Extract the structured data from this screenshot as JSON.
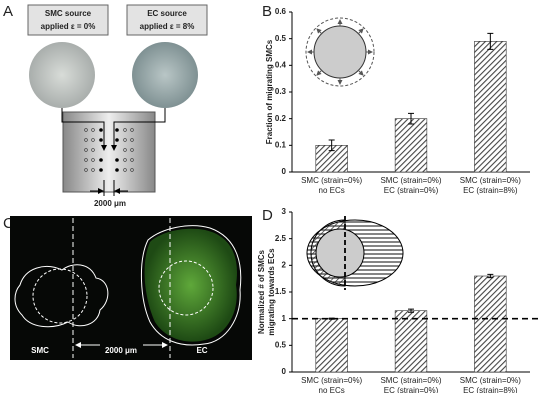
{
  "panel_labels": [
    "A",
    "B",
    "C",
    "D"
  ],
  "diagram_a": {
    "smc_box": [
      "SMC source",
      "applied ε = 0%"
    ],
    "ec_box": [
      "EC source",
      "applied ε = 8%"
    ],
    "scale": "2000 μm"
  },
  "image_c": {
    "smc": "SMC",
    "ec": "EC",
    "scale": "2000 μm"
  },
  "chart_data": [
    {
      "type": "bar",
      "ylabel": [
        "Fraction of migrating SMCs"
      ],
      "categories": [
        [
          "SMC (strain=0%)",
          "no ECs"
        ],
        [
          "SMC (strain=0%)",
          "EC (strain=0%)"
        ],
        [
          "SMC (strain=0%)",
          "EC (strain=8%)"
        ]
      ],
      "values": [
        0.1,
        0.2,
        0.49
      ],
      "errors": [
        0.02,
        0.02,
        0.03
      ],
      "color": "#444444",
      "ylim": [
        0,
        0.6
      ],
      "yticks": [
        0,
        0.1,
        0.2,
        0.3,
        0.4,
        0.5,
        0.6
      ]
    },
    {
      "type": "bar",
      "ylabel": [
        "Normalized # of SMCs",
        "migrating towards ECs"
      ],
      "categories": [
        [
          "SMC (strain=0%)",
          "no ECs"
        ],
        [
          "SMC (strain=0%)",
          "EC (strain=0%)"
        ],
        [
          "SMC (strain=0%)",
          "EC (strain=8%)"
        ]
      ],
      "values": [
        1.0,
        1.15,
        1.8
      ],
      "errors": [
        0.01,
        0.03,
        0.03
      ],
      "color": "#444444",
      "ylim": [
        0,
        3
      ],
      "yticks": [
        0,
        0.5,
        1,
        1.5,
        2,
        2.5,
        3
      ],
      "reference_line": 1
    }
  ]
}
